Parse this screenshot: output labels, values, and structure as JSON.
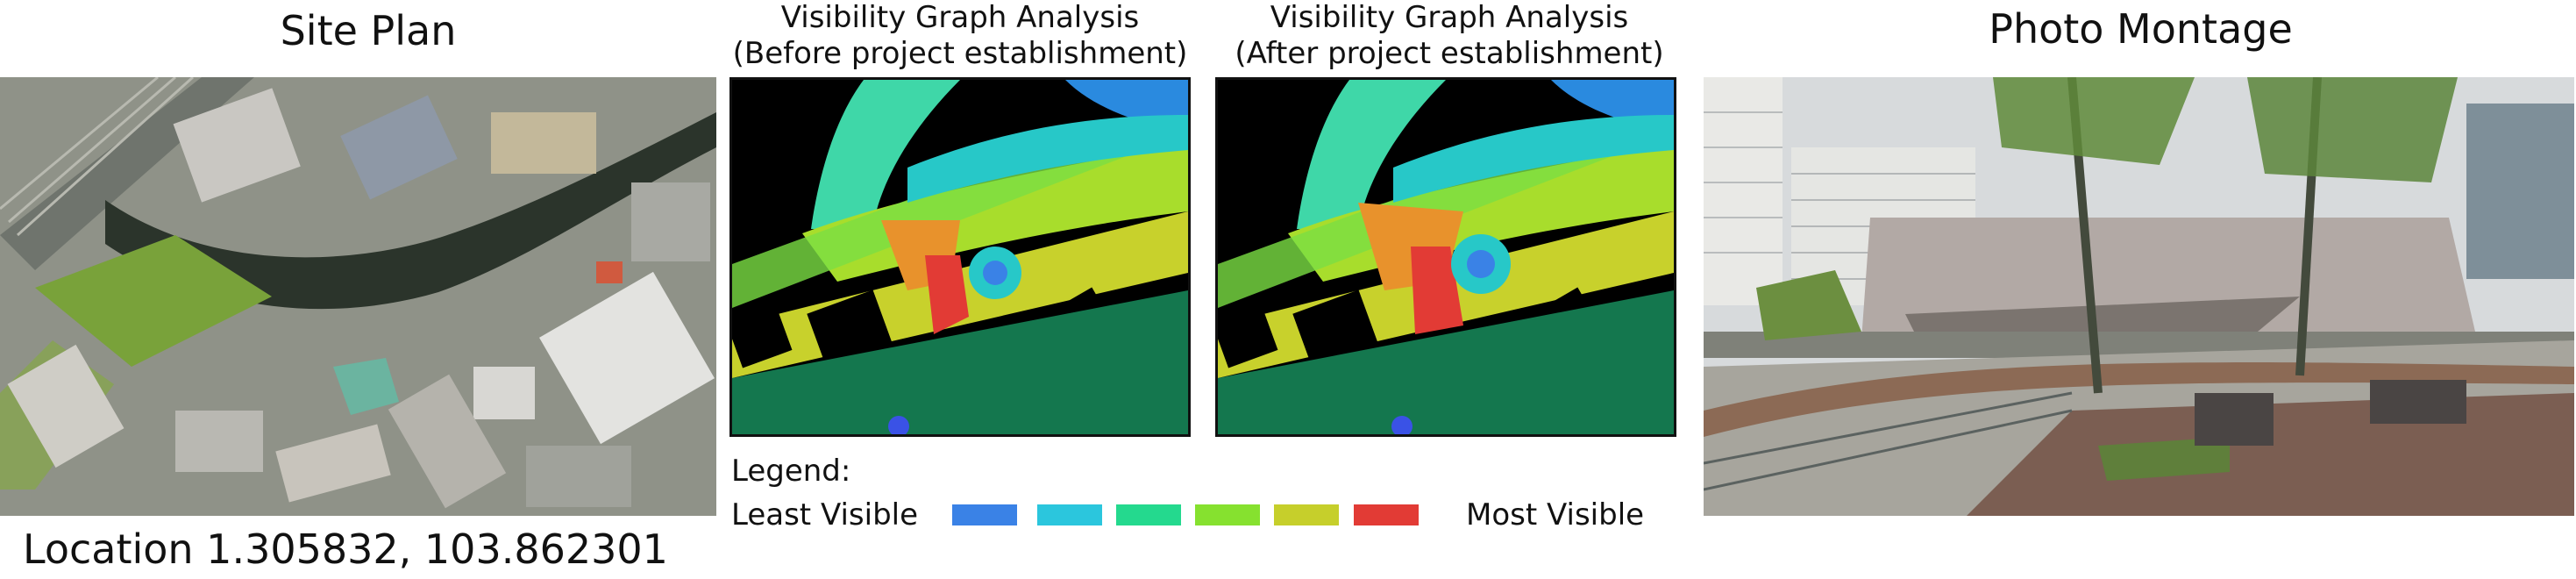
{
  "site_plan": {
    "title": "Site Plan",
    "location_label": "Location 1.305832, 103.862301"
  },
  "vga_before": {
    "title_line1": "Visibility Graph Analysis",
    "title_line2": "(Before project establishment)"
  },
  "vga_after": {
    "title_line1": "Visibility Graph Analysis",
    "title_line2": "(After project establishment)"
  },
  "legend": {
    "heading": "Legend:",
    "least_label": "Least Visible",
    "most_label": "Most Visible",
    "colors": [
      "#3a82e6",
      "#2bc6dd",
      "#24d98e",
      "#86e12f",
      "#c6cf2b",
      "#e23b35"
    ]
  },
  "photo_montage": {
    "title": "Photo Montage"
  }
}
